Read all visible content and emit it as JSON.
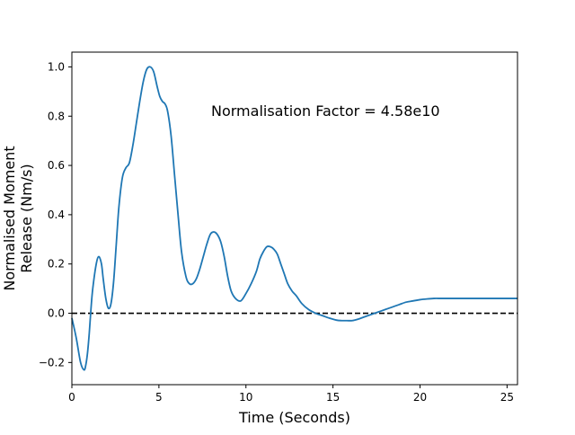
{
  "chart_data": {
    "type": "line",
    "title": "",
    "xlabel": "Time (Seconds)",
    "ylabel_lines": [
      "Normalised Moment",
      "Release (Nm/s)"
    ],
    "annotation": "Normalisation Factor = 4.58e10",
    "xlim": [
      0,
      25.6
    ],
    "ylim": [
      -0.29,
      1.06
    ],
    "xticks": [
      0,
      5,
      10,
      15,
      20,
      25
    ],
    "yticks": [
      -0.2,
      0.0,
      0.2,
      0.4,
      0.6,
      0.8,
      1.0
    ],
    "xtick_labels": [
      "0",
      "5",
      "10",
      "15",
      "20",
      "25"
    ],
    "ytick_labels": [
      "−0.2",
      "0.0",
      "0.2",
      "0.4",
      "0.6",
      "0.8",
      "1.0"
    ],
    "reference_line": {
      "y": 0.0,
      "style": "dashed",
      "color": "#000000"
    },
    "grid": false,
    "series": [
      {
        "color": "#1f77b4",
        "x": [
          0,
          0.25,
          0.5,
          0.7,
          0.8,
          0.9,
          1.0,
          1.1,
          1.2,
          1.4,
          1.55,
          1.7,
          1.8,
          1.95,
          2.1,
          2.25,
          2.4,
          2.55,
          2.7,
          2.9,
          3.1,
          3.3,
          3.5,
          3.7,
          3.9,
          4.1,
          4.3,
          4.5,
          4.7,
          4.9,
          5.05,
          5.2,
          5.35,
          5.5,
          5.7,
          5.9,
          6.1,
          6.3,
          6.55,
          6.75,
          6.95,
          7.15,
          7.35,
          7.55,
          7.75,
          7.95,
          8.15,
          8.35,
          8.55,
          8.75,
          8.95,
          9.15,
          9.4,
          9.7,
          10.0,
          10.3,
          10.6,
          10.8,
          11.0,
          11.2,
          11.4,
          11.6,
          11.8,
          12.0,
          12.2,
          12.4,
          12.65,
          12.9,
          13.2,
          13.6,
          14.0,
          14.4,
          14.8,
          15.2,
          15.5,
          15.8,
          16.1,
          16.4,
          16.8,
          17.2,
          17.6,
          18.0,
          18.4,
          18.8,
          19.2,
          19.6,
          20.0,
          20.4,
          20.8,
          21.2,
          21.6,
          22.0,
          22.4,
          22.8,
          23.2,
          23.6,
          24.0,
          24.4,
          24.8,
          25.2,
          25.6
        ],
        "y": [
          -0.02,
          -0.1,
          -0.2,
          -0.23,
          -0.21,
          -0.16,
          -0.08,
          0.02,
          0.1,
          0.2,
          0.23,
          0.2,
          0.14,
          0.06,
          0.02,
          0.04,
          0.13,
          0.28,
          0.43,
          0.55,
          0.59,
          0.61,
          0.68,
          0.77,
          0.86,
          0.94,
          0.99,
          1.0,
          0.98,
          0.92,
          0.88,
          0.86,
          0.85,
          0.82,
          0.72,
          0.56,
          0.4,
          0.25,
          0.15,
          0.12,
          0.12,
          0.14,
          0.18,
          0.23,
          0.28,
          0.32,
          0.33,
          0.32,
          0.29,
          0.23,
          0.15,
          0.09,
          0.06,
          0.05,
          0.08,
          0.12,
          0.17,
          0.22,
          0.25,
          0.27,
          0.27,
          0.26,
          0.24,
          0.2,
          0.16,
          0.12,
          0.09,
          0.07,
          0.04,
          0.015,
          0.0,
          -0.01,
          -0.02,
          -0.028,
          -0.03,
          -0.03,
          -0.03,
          -0.025,
          -0.015,
          -0.005,
          0.005,
          0.015,
          0.025,
          0.035,
          0.045,
          0.05,
          0.055,
          0.058,
          0.06,
          0.06,
          0.06,
          0.06,
          0.06,
          0.06,
          0.06,
          0.06,
          0.06,
          0.06,
          0.06,
          0.06,
          0.06
        ]
      }
    ]
  }
}
